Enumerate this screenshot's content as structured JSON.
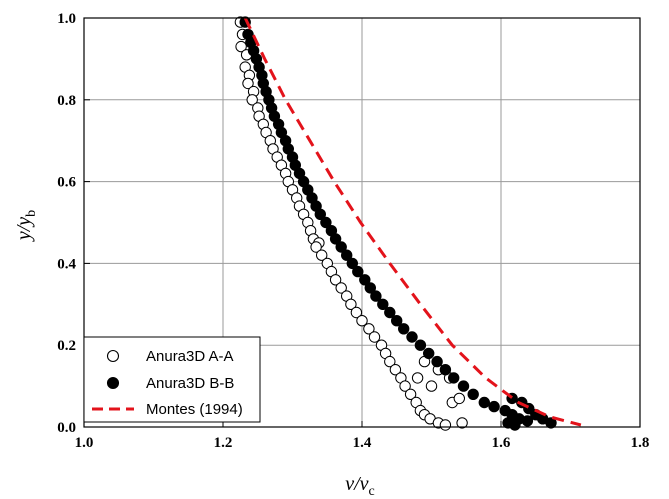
{
  "chart_data": {
    "type": "scatter",
    "xlabel": {
      "main": "v/v",
      "sub": "c"
    },
    "ylabel": {
      "main": "y/y",
      "sub": "b"
    },
    "xlim": [
      1.0,
      1.8
    ],
    "ylim": [
      0.0,
      1.0
    ],
    "xticks": [
      "1.0",
      "1.2",
      "1.4",
      "1.6",
      "1.8"
    ],
    "yticks": [
      "0.0",
      "0.2",
      "0.4",
      "0.6",
      "0.8",
      "1.0"
    ],
    "grid": true,
    "legend_position": "bottom-left",
    "series": [
      {
        "name": "Anura3D A-A",
        "style": "open-circle",
        "points": [
          [
            1.225,
            0.99
          ],
          [
            1.228,
            0.96
          ],
          [
            1.226,
            0.93
          ],
          [
            1.234,
            0.91
          ],
          [
            1.232,
            0.88
          ],
          [
            1.238,
            0.86
          ],
          [
            1.236,
            0.84
          ],
          [
            1.244,
            0.82
          ],
          [
            1.242,
            0.8
          ],
          [
            1.25,
            0.78
          ],
          [
            1.252,
            0.76
          ],
          [
            1.258,
            0.74
          ],
          [
            1.262,
            0.72
          ],
          [
            1.268,
            0.7
          ],
          [
            1.272,
            0.68
          ],
          [
            1.278,
            0.66
          ],
          [
            1.284,
            0.64
          ],
          [
            1.29,
            0.62
          ],
          [
            1.294,
            0.6
          ],
          [
            1.3,
            0.58
          ],
          [
            1.306,
            0.56
          ],
          [
            1.31,
            0.54
          ],
          [
            1.316,
            0.52
          ],
          [
            1.322,
            0.5
          ],
          [
            1.326,
            0.48
          ],
          [
            1.33,
            0.46
          ],
          [
            1.338,
            0.45
          ],
          [
            1.334,
            0.44
          ],
          [
            1.342,
            0.42
          ],
          [
            1.35,
            0.4
          ],
          [
            1.356,
            0.38
          ],
          [
            1.362,
            0.36
          ],
          [
            1.37,
            0.34
          ],
          [
            1.378,
            0.32
          ],
          [
            1.384,
            0.3
          ],
          [
            1.392,
            0.28
          ],
          [
            1.4,
            0.26
          ],
          [
            1.41,
            0.24
          ],
          [
            1.418,
            0.22
          ],
          [
            1.428,
            0.2
          ],
          [
            1.434,
            0.18
          ],
          [
            1.44,
            0.16
          ],
          [
            1.448,
            0.14
          ],
          [
            1.456,
            0.12
          ],
          [
            1.462,
            0.1
          ],
          [
            1.47,
            0.08
          ],
          [
            1.478,
            0.06
          ],
          [
            1.484,
            0.04
          ],
          [
            1.49,
            0.03
          ],
          [
            1.498,
            0.02
          ],
          [
            1.51,
            0.01
          ],
          [
            1.52,
            0.005
          ],
          [
            1.48,
            0.12
          ],
          [
            1.5,
            0.1
          ],
          [
            1.53,
            0.06
          ],
          [
            1.54,
            0.07
          ],
          [
            1.51,
            0.14
          ],
          [
            1.49,
            0.16
          ],
          [
            1.526,
            0.12
          ],
          [
            1.544,
            0.01
          ]
        ]
      },
      {
        "name": "Anura3D B-B",
        "style": "filled-circle",
        "points": [
          [
            1.232,
            0.99
          ],
          [
            1.236,
            0.96
          ],
          [
            1.24,
            0.94
          ],
          [
            1.244,
            0.92
          ],
          [
            1.248,
            0.9
          ],
          [
            1.252,
            0.88
          ],
          [
            1.256,
            0.86
          ],
          [
            1.258,
            0.84
          ],
          [
            1.262,
            0.82
          ],
          [
            1.266,
            0.8
          ],
          [
            1.27,
            0.78
          ],
          [
            1.274,
            0.76
          ],
          [
            1.28,
            0.74
          ],
          [
            1.284,
            0.72
          ],
          [
            1.29,
            0.7
          ],
          [
            1.294,
            0.68
          ],
          [
            1.3,
            0.66
          ],
          [
            1.304,
            0.64
          ],
          [
            1.31,
            0.62
          ],
          [
            1.316,
            0.6
          ],
          [
            1.322,
            0.58
          ],
          [
            1.328,
            0.56
          ],
          [
            1.334,
            0.54
          ],
          [
            1.34,
            0.52
          ],
          [
            1.348,
            0.5
          ],
          [
            1.356,
            0.48
          ],
          [
            1.362,
            0.46
          ],
          [
            1.37,
            0.44
          ],
          [
            1.378,
            0.42
          ],
          [
            1.386,
            0.4
          ],
          [
            1.394,
            0.38
          ],
          [
            1.404,
            0.36
          ],
          [
            1.412,
            0.34
          ],
          [
            1.42,
            0.32
          ],
          [
            1.43,
            0.3
          ],
          [
            1.44,
            0.28
          ],
          [
            1.45,
            0.26
          ],
          [
            1.46,
            0.24
          ],
          [
            1.472,
            0.22
          ],
          [
            1.484,
            0.2
          ],
          [
            1.496,
            0.18
          ],
          [
            1.508,
            0.16
          ],
          [
            1.52,
            0.14
          ],
          [
            1.532,
            0.12
          ],
          [
            1.546,
            0.1
          ],
          [
            1.56,
            0.08
          ],
          [
            1.576,
            0.06
          ],
          [
            1.59,
            0.05
          ],
          [
            1.606,
            0.04
          ],
          [
            1.616,
            0.03
          ],
          [
            1.626,
            0.02
          ],
          [
            1.638,
            0.015
          ],
          [
            1.616,
            0.07
          ],
          [
            1.63,
            0.06
          ],
          [
            1.64,
            0.045
          ],
          [
            1.65,
            0.03
          ],
          [
            1.66,
            0.02
          ],
          [
            1.672,
            0.01
          ],
          [
            1.61,
            0.01
          ],
          [
            1.62,
            0.005
          ]
        ]
      },
      {
        "name": "Montes (1994)",
        "style": "dashed-line",
        "color": "#e3131b",
        "points": [
          [
            1.232,
            1.0
          ],
          [
            1.26,
            0.9
          ],
          [
            1.29,
            0.8
          ],
          [
            1.325,
            0.7
          ],
          [
            1.36,
            0.6
          ],
          [
            1.398,
            0.5
          ],
          [
            1.44,
            0.4
          ],
          [
            1.484,
            0.3
          ],
          [
            1.53,
            0.2
          ],
          [
            1.578,
            0.12
          ],
          [
            1.625,
            0.06
          ],
          [
            1.67,
            0.025
          ],
          [
            1.715,
            0.005
          ]
        ]
      }
    ]
  }
}
